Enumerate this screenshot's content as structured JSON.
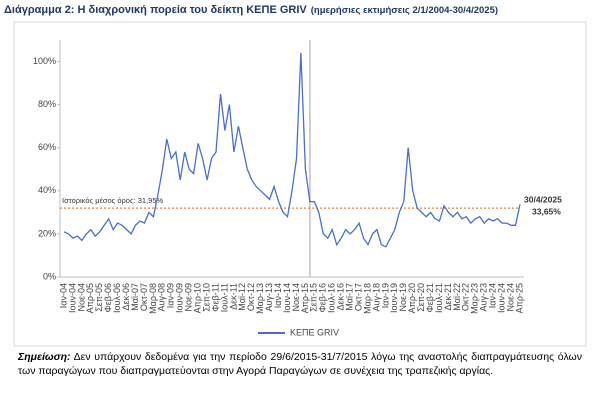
{
  "chart_data": {
    "type": "line",
    "title": "Διάγραμμα 2: Η διαχρονική πορεία του δείκτη ΚΕΠΕ GRIV",
    "subtitle": "(ημερήσιες εκτιμήσεις 2/1/2004-30/4/2025)",
    "categories": [
      "Ιαν-04",
      null,
      "Ιουν-04",
      null,
      "Νοε-04",
      null,
      "Απρ-05",
      null,
      "Σεπ-05",
      null,
      "Φεβ-06",
      null,
      "Ιουλ-06",
      null,
      "Δεκ-06",
      null,
      "Μαϊ-07",
      null,
      "Οκτ-07",
      null,
      "Μαρ-08",
      null,
      "Αυγ-08",
      null,
      "Ιαν-09",
      null,
      "Ιουν-09",
      null,
      "Νοε-09",
      null,
      "Απρ-10",
      null,
      "Σεπ-10",
      null,
      "Φεβ-11",
      null,
      "Ιουλ-11",
      null,
      "Δεκ-11",
      null,
      "Μαϊ-12",
      null,
      "Οκτ-12",
      null,
      "Μαρ-13",
      null,
      "Αυγ-13",
      null,
      "Ιαν-14",
      null,
      "Ιουν-14",
      null,
      "Νοε-14",
      null,
      "Απρ-15",
      null,
      "Σεπ-15",
      null,
      "Φεβ-16",
      null,
      "Ιουλ-16",
      null,
      "Δεκ-16",
      null,
      "Μαϊ-17",
      null,
      "Οκτ-17",
      null,
      "Μαρ-18",
      null,
      "Αυγ-18",
      null,
      "Ιαν-19",
      null,
      "Ιουν-19",
      null,
      "Νοε-19",
      null,
      "Απρ-20",
      null,
      "Σεπ-20",
      null,
      "Φεβ-21",
      null,
      "Ιουλ-21",
      null,
      "Δεκ-21",
      null,
      "Μαϊ-22",
      null,
      "Οκτ-22",
      null,
      "Μαρ-23",
      null,
      "Αυγ-23",
      null,
      "Ιαν-24",
      null,
      "Ιουν-24",
      null,
      "Νοε-24",
      null,
      "Απρ-25"
    ],
    "series": [
      {
        "name": "ΚΕΠΕ GRIV",
        "color": "#4a6fc6",
        "values": [
          21,
          20,
          18,
          19,
          17,
          20,
          22,
          19,
          21,
          24,
          27,
          22,
          25,
          24,
          22,
          20,
          24,
          26,
          25,
          30,
          28,
          38,
          50,
          64,
          55,
          58,
          45,
          58,
          50,
          48,
          62,
          55,
          45,
          55,
          58,
          85,
          68,
          80,
          58,
          70,
          60,
          50,
          45,
          42,
          40,
          38,
          36,
          42,
          35,
          30,
          28,
          40,
          55,
          104,
          50,
          35,
          35,
          30,
          20,
          18,
          22,
          15,
          18,
          22,
          20,
          22,
          25,
          18,
          15,
          20,
          22,
          15,
          14,
          18,
          22,
          30,
          35,
          60,
          40,
          32,
          30,
          28,
          30,
          27,
          26,
          33,
          30,
          28,
          30,
          27,
          28,
          25,
          27,
          28,
          25,
          27,
          26,
          27,
          25,
          25,
          24,
          24,
          33.65
        ]
      }
    ],
    "ylim": [
      0,
      110
    ],
    "yticks": [
      {
        "value": 0,
        "label": "0%"
      },
      {
        "value": 20,
        "label": "20%"
      },
      {
        "value": 40,
        "label": "40%"
      },
      {
        "value": 60,
        "label": "60%"
      },
      {
        "value": 80,
        "label": "80%"
      },
      {
        "value": 100,
        "label": "100%"
      }
    ],
    "mean": {
      "value": 31.95,
      "label": "Ιστορικός μέσος όρος: 31,95%",
      "color": "#e8833a"
    },
    "annotations": [
      "30/4/2025",
      "33,65%"
    ],
    "grid": false,
    "legend": "bottom",
    "note_label": "Σημείωση:",
    "note": "Δεν υπάρχουν δεδομένα για την περίοδο 29/6/2015-31/7/2015 λόγω της αναστολής διαπραγμάτευσης όλων των παραγώγων που διαπραγματεύονται στην Αγορά Παραγώγων σε συνέχεια της τραπεζικής αργίας."
  }
}
